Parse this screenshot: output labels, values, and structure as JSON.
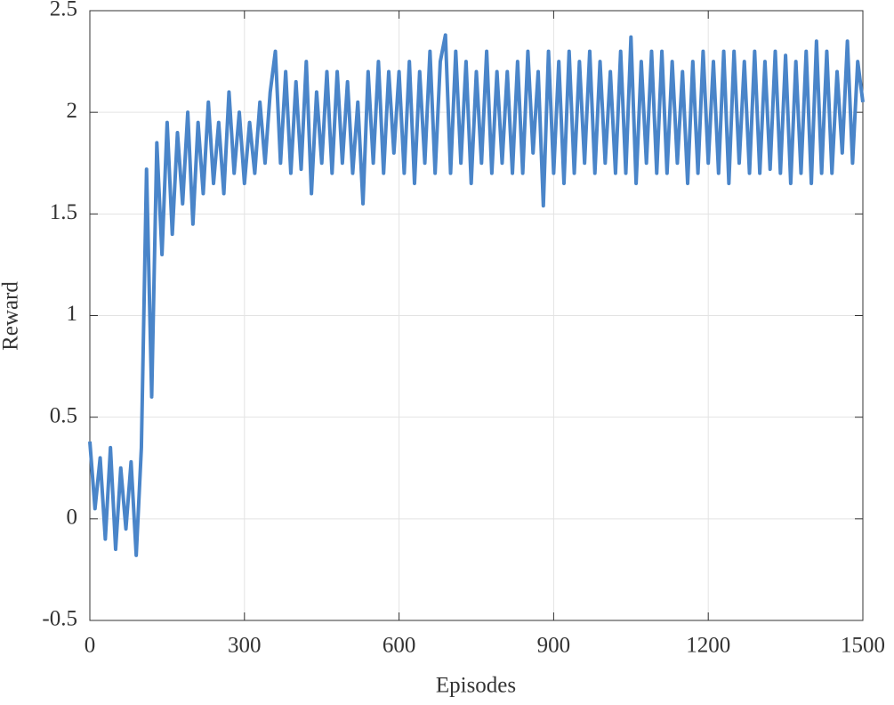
{
  "chart_data": {
    "type": "line",
    "x_label": "Episodes",
    "y_label": "Reward",
    "x": [
      0,
      10,
      20,
      30,
      40,
      50,
      60,
      70,
      80,
      90,
      100,
      110,
      120,
      130,
      140,
      150,
      160,
      170,
      180,
      190,
      200,
      210,
      220,
      230,
      240,
      250,
      260,
      270,
      280,
      290,
      300,
      310,
      320,
      330,
      340,
      350,
      360,
      370,
      380,
      390,
      400,
      410,
      420,
      430,
      440,
      450,
      460,
      470,
      480,
      490,
      500,
      510,
      520,
      530,
      540,
      550,
      560,
      570,
      580,
      590,
      600,
      610,
      620,
      630,
      640,
      650,
      660,
      670,
      680,
      690,
      700,
      710,
      720,
      730,
      740,
      750,
      760,
      770,
      780,
      790,
      800,
      810,
      820,
      830,
      840,
      850,
      860,
      870,
      880,
      890,
      900,
      910,
      920,
      930,
      940,
      950,
      960,
      970,
      980,
      990,
      1000,
      1010,
      1020,
      1030,
      1040,
      1050,
      1060,
      1070,
      1080,
      1090,
      1100,
      1110,
      1120,
      1130,
      1140,
      1150,
      1160,
      1170,
      1180,
      1190,
      1200,
      1210,
      1220,
      1230,
      1240,
      1250,
      1260,
      1270,
      1280,
      1290,
      1300,
      1310,
      1320,
      1330,
      1340,
      1350,
      1360,
      1370,
      1380,
      1390,
      1400,
      1410,
      1420,
      1430,
      1440,
      1450,
      1460,
      1470,
      1480,
      1490,
      1500
    ],
    "series": [
      {
        "color": "#4a85c9",
        "values": [
          0.38,
          0.05,
          0.3,
          -0.1,
          0.35,
          -0.15,
          0.25,
          -0.05,
          0.28,
          -0.18,
          0.35,
          1.72,
          0.6,
          1.85,
          1.3,
          1.95,
          1.4,
          1.9,
          1.55,
          2.0,
          1.45,
          1.95,
          1.6,
          2.05,
          1.65,
          1.95,
          1.6,
          2.1,
          1.7,
          2.0,
          1.65,
          1.95,
          1.7,
          2.05,
          1.75,
          2.1,
          2.3,
          1.75,
          2.2,
          1.7,
          2.15,
          1.72,
          2.25,
          1.6,
          2.1,
          1.75,
          2.2,
          1.7,
          2.2,
          1.75,
          2.15,
          1.7,
          2.05,
          1.55,
          2.2,
          1.75,
          2.25,
          1.7,
          2.2,
          1.8,
          2.2,
          1.7,
          2.25,
          1.65,
          2.2,
          1.75,
          2.3,
          1.7,
          2.25,
          2.38,
          1.7,
          2.3,
          1.75,
          2.25,
          1.65,
          2.2,
          1.75,
          2.3,
          1.7,
          2.2,
          1.75,
          2.2,
          1.7,
          2.25,
          1.7,
          2.3,
          1.8,
          2.2,
          1.54,
          2.3,
          1.7,
          2.25,
          1.65,
          2.3,
          1.7,
          2.25,
          1.75,
          2.3,
          1.7,
          2.25,
          1.75,
          2.2,
          1.7,
          2.3,
          1.7,
          2.37,
          1.65,
          2.25,
          1.75,
          2.3,
          1.7,
          2.3,
          1.7,
          2.25,
          1.75,
          2.2,
          1.65,
          2.25,
          1.7,
          2.3,
          1.75,
          2.25,
          1.7,
          2.3,
          1.65,
          2.3,
          1.75,
          2.25,
          1.7,
          2.3,
          1.7,
          2.25,
          1.72,
          2.3,
          1.7,
          2.28,
          1.65,
          2.25,
          1.7,
          2.3,
          1.65,
          2.35,
          1.7,
          2.3,
          1.7,
          2.2,
          1.8,
          2.35,
          1.75,
          2.25,
          2.05
        ]
      }
    ],
    "xlim": [
      0,
      1500
    ],
    "ylim": [
      -0.5,
      2.5
    ],
    "xticks": [
      0,
      300,
      600,
      900,
      1200,
      1500
    ],
    "yticks": [
      -0.5,
      0,
      0.5,
      1,
      1.5,
      2,
      2.5
    ],
    "grid": true
  }
}
